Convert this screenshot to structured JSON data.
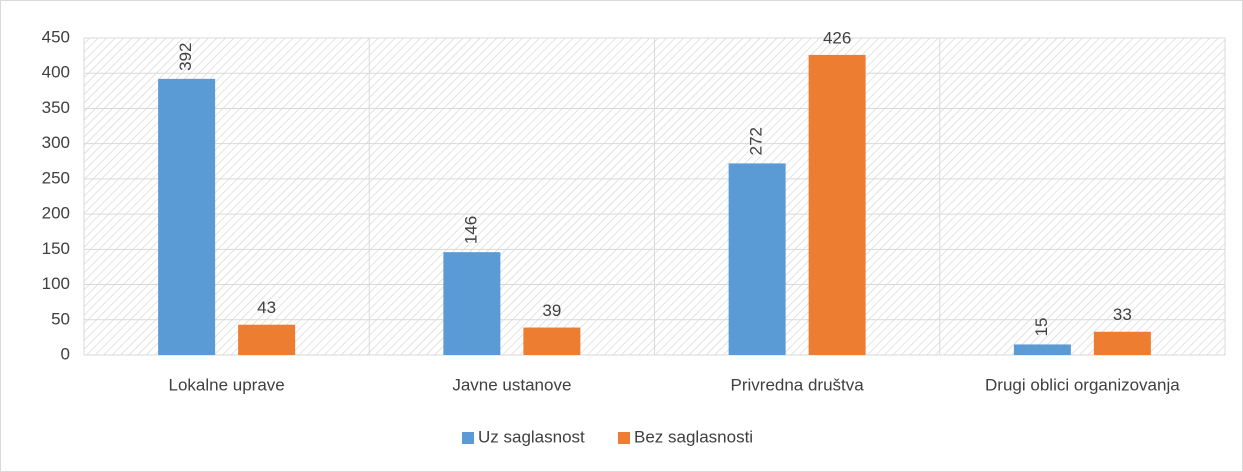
{
  "chart_data": {
    "type": "bar",
    "categories": [
      "Lokalne uprave",
      "Javne ustanove",
      "Privredna društva",
      "Drugi oblici organizovanja"
    ],
    "series": [
      {
        "name": "Uz saglasnost",
        "color": "#5b9bd5",
        "values": [
          392,
          146,
          272,
          15
        ]
      },
      {
        "name": "Bez saglasnosti",
        "color": "#ed7d31",
        "values": [
          43,
          39,
          426,
          33
        ]
      }
    ],
    "ylim": [
      0,
      450
    ],
    "yticks": [
      0,
      50,
      100,
      150,
      200,
      250,
      300,
      350,
      400,
      450
    ],
    "grid": true,
    "legend": "bottom"
  }
}
